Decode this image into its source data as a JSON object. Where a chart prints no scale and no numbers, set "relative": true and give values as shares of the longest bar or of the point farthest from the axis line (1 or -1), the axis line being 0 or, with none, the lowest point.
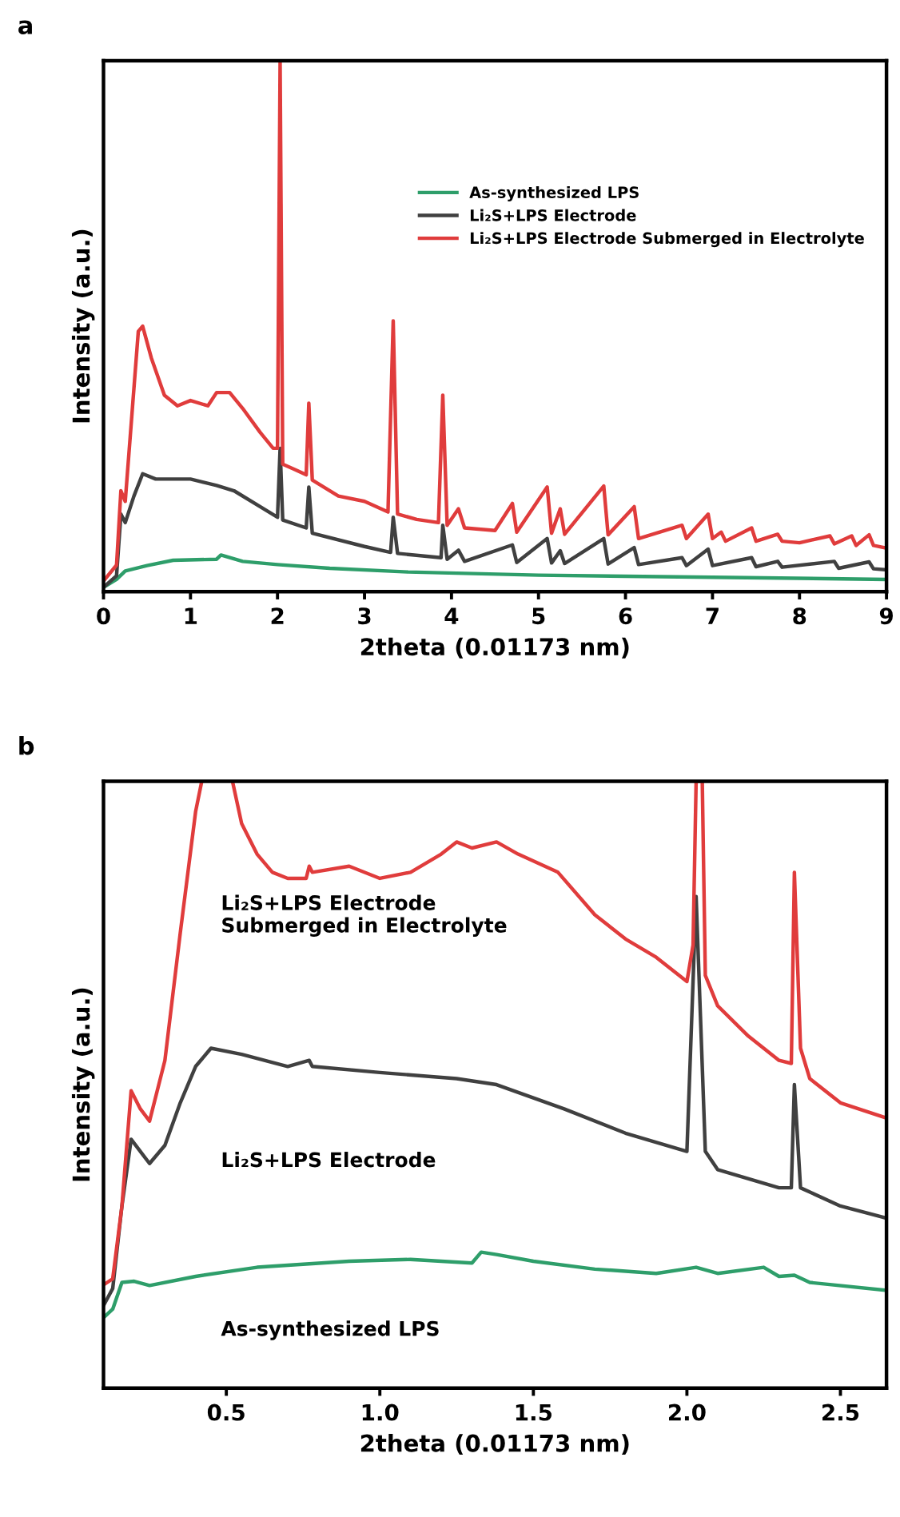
{
  "chart_data": [
    {
      "type": "line",
      "title": "a",
      "xlabel": "2theta (0.01173 nm)",
      "ylabel": "Intensity (a.u.)",
      "relative": true,
      "xlim": [
        0,
        9
      ],
      "xticks": [
        0,
        1,
        2,
        3,
        4,
        5,
        6,
        7,
        8,
        9
      ],
      "legend": "top right",
      "grid": false,
      "series": [
        {
          "name": "As-synthesized LPS",
          "color": "#2e9e6a",
          "x": [
            0.0,
            0.15,
            0.25,
            0.5,
            0.8,
            1.3,
            1.35,
            1.6,
            2.0,
            2.6,
            3.5,
            5.0,
            7.0,
            9.0
          ],
          "values": [
            0.008,
            0.023,
            0.039,
            0.049,
            0.059,
            0.061,
            0.069,
            0.057,
            0.051,
            0.044,
            0.037,
            0.031,
            0.027,
            0.023
          ]
        },
        {
          "name": "Li₂S+LPS Electrode",
          "color": "#404040",
          "x": [
            0.0,
            0.15,
            0.2,
            0.25,
            0.35,
            0.45,
            0.6,
            1.0,
            1.3,
            1.5,
            1.8,
            2.0,
            2.03,
            2.06,
            2.33,
            2.36,
            2.4,
            3.0,
            3.3,
            3.33,
            3.38,
            3.88,
            3.9,
            3.95,
            4.08,
            4.15,
            4.7,
            4.75,
            5.1,
            5.15,
            5.25,
            5.3,
            5.75,
            5.8,
            6.1,
            6.15,
            6.65,
            6.7,
            6.95,
            7.0,
            7.45,
            7.5,
            7.75,
            7.8,
            8.4,
            8.45,
            8.8,
            8.85,
            9.0
          ],
          "values": [
            0.008,
            0.03,
            0.146,
            0.13,
            0.18,
            0.222,
            0.212,
            0.212,
            0.2,
            0.19,
            0.16,
            0.14,
            0.27,
            0.135,
            0.12,
            0.197,
            0.11,
            0.085,
            0.074,
            0.14,
            0.072,
            0.064,
            0.125,
            0.061,
            0.078,
            0.057,
            0.088,
            0.055,
            0.1,
            0.054,
            0.077,
            0.053,
            0.1,
            0.052,
            0.083,
            0.051,
            0.064,
            0.049,
            0.08,
            0.049,
            0.064,
            0.047,
            0.057,
            0.046,
            0.057,
            0.044,
            0.056,
            0.043,
            0.041
          ]
        },
        {
          "name": "Li₂S+LPS Electrode Submerged in Electrolyte",
          "color": "#e03c3c",
          "x": [
            0.0,
            0.15,
            0.2,
            0.25,
            0.4,
            0.45,
            0.55,
            0.7,
            0.85,
            1.0,
            1.2,
            1.3,
            1.45,
            1.6,
            1.8,
            1.95,
            2.0,
            2.03,
            2.06,
            2.2,
            2.33,
            2.36,
            2.4,
            2.7,
            3.0,
            3.27,
            3.33,
            3.38,
            3.6,
            3.85,
            3.9,
            3.95,
            4.08,
            4.15,
            4.5,
            4.7,
            4.75,
            5.1,
            5.15,
            5.25,
            5.3,
            5.75,
            5.8,
            6.1,
            6.15,
            6.65,
            6.7,
            6.95,
            7.0,
            7.1,
            7.15,
            7.45,
            7.5,
            7.75,
            7.8,
            8.0,
            8.35,
            8.4,
            8.6,
            8.65,
            8.8,
            8.85,
            9.0
          ],
          "values": [
            0.02,
            0.05,
            0.19,
            0.17,
            0.49,
            0.5,
            0.44,
            0.37,
            0.35,
            0.36,
            0.35,
            0.375,
            0.375,
            0.345,
            0.3,
            0.27,
            0.27,
            1.0,
            0.24,
            0.23,
            0.22,
            0.355,
            0.21,
            0.18,
            0.17,
            0.15,
            0.51,
            0.146,
            0.136,
            0.13,
            0.37,
            0.125,
            0.156,
            0.12,
            0.115,
            0.166,
            0.112,
            0.197,
            0.11,
            0.156,
            0.108,
            0.199,
            0.107,
            0.16,
            0.1,
            0.125,
            0.1,
            0.146,
            0.1,
            0.112,
            0.095,
            0.12,
            0.095,
            0.108,
            0.095,
            0.092,
            0.105,
            0.09,
            0.105,
            0.087,
            0.107,
            0.087,
            0.082
          ]
        }
      ]
    },
    {
      "type": "line",
      "title": "b",
      "xlabel": "2theta (0.01173 nm)",
      "ylabel": "Intensity (a.u.)",
      "relative": true,
      "xlim": [
        0.1,
        2.65
      ],
      "xticks": [
        {
          "value": 0.5,
          "label": "0.5"
        },
        {
          "value": 1.0,
          "label": "1.0"
        },
        {
          "value": 1.5,
          "label": "1.5"
        },
        {
          "value": 2.0,
          "label": "2.0"
        },
        {
          "value": 2.5,
          "label": "2.5"
        }
      ],
      "legend": false,
      "grid": false,
      "series": [
        {
          "name": "As-synthesized LPS",
          "color": "#2e9e6a",
          "x": [
            0.1,
            0.13,
            0.16,
            0.2,
            0.25,
            0.4,
            0.6,
            0.9,
            1.1,
            1.3,
            1.33,
            1.38,
            1.5,
            1.7,
            1.9,
            2.03,
            2.1,
            2.25,
            2.3,
            2.35,
            2.4,
            2.65
          ],
          "values": [
            0.116,
            0.13,
            0.174,
            0.176,
            0.169,
            0.184,
            0.199,
            0.209,
            0.212,
            0.206,
            0.224,
            0.22,
            0.209,
            0.196,
            0.189,
            0.199,
            0.189,
            0.199,
            0.184,
            0.186,
            0.174,
            0.161
          ]
        },
        {
          "name": "Li₂S+LPS Electrode",
          "color": "#404040",
          "x": [
            0.1,
            0.13,
            0.16,
            0.19,
            0.22,
            0.25,
            0.3,
            0.35,
            0.4,
            0.45,
            0.55,
            0.7,
            0.77,
            0.78,
            1.0,
            1.25,
            1.38,
            1.6,
            1.8,
            2.0,
            2.03,
            2.06,
            2.1,
            2.3,
            2.34,
            2.35,
            2.37,
            2.5,
            2.65
          ],
          "values": [
            0.136,
            0.164,
            0.3,
            0.41,
            0.39,
            0.37,
            0.4,
            0.47,
            0.53,
            0.56,
            0.55,
            0.53,
            0.54,
            0.53,
            0.52,
            0.51,
            0.5,
            0.46,
            0.42,
            0.39,
            0.81,
            0.39,
            0.36,
            0.33,
            0.33,
            0.5,
            0.33,
            0.3,
            0.28
          ]
        },
        {
          "name": "Li₂S+LPS Electrode\nSubmerged in Electrolyte",
          "color": "#e03c3c",
          "x": [
            0.1,
            0.13,
            0.16,
            0.19,
            0.22,
            0.25,
            0.3,
            0.35,
            0.4,
            0.42,
            0.47,
            0.52,
            0.55,
            0.6,
            0.65,
            0.7,
            0.76,
            0.77,
            0.78,
            0.9,
            1.0,
            1.1,
            1.2,
            1.25,
            1.3,
            1.38,
            1.45,
            1.58,
            1.7,
            1.8,
            1.9,
            2.0,
            2.02,
            2.03,
            2.05,
            2.06,
            2.1,
            2.2,
            2.3,
            2.34,
            2.35,
            2.37,
            2.4,
            2.5,
            2.65
          ],
          "values": [
            0.17,
            0.18,
            0.3,
            0.49,
            0.46,
            0.44,
            0.54,
            0.75,
            0.95,
            1.0,
            null,
            1.0,
            0.93,
            0.88,
            0.85,
            0.84,
            0.84,
            0.86,
            0.85,
            0.86,
            0.84,
            0.85,
            0.88,
            0.9,
            0.89,
            0.9,
            0.88,
            0.85,
            0.78,
            0.74,
            0.71,
            0.67,
            0.73,
            1.0,
            1.0,
            0.68,
            0.63,
            0.58,
            0.54,
            0.535,
            0.85,
            0.56,
            0.51,
            0.47,
            0.445
          ]
        }
      ]
    }
  ]
}
